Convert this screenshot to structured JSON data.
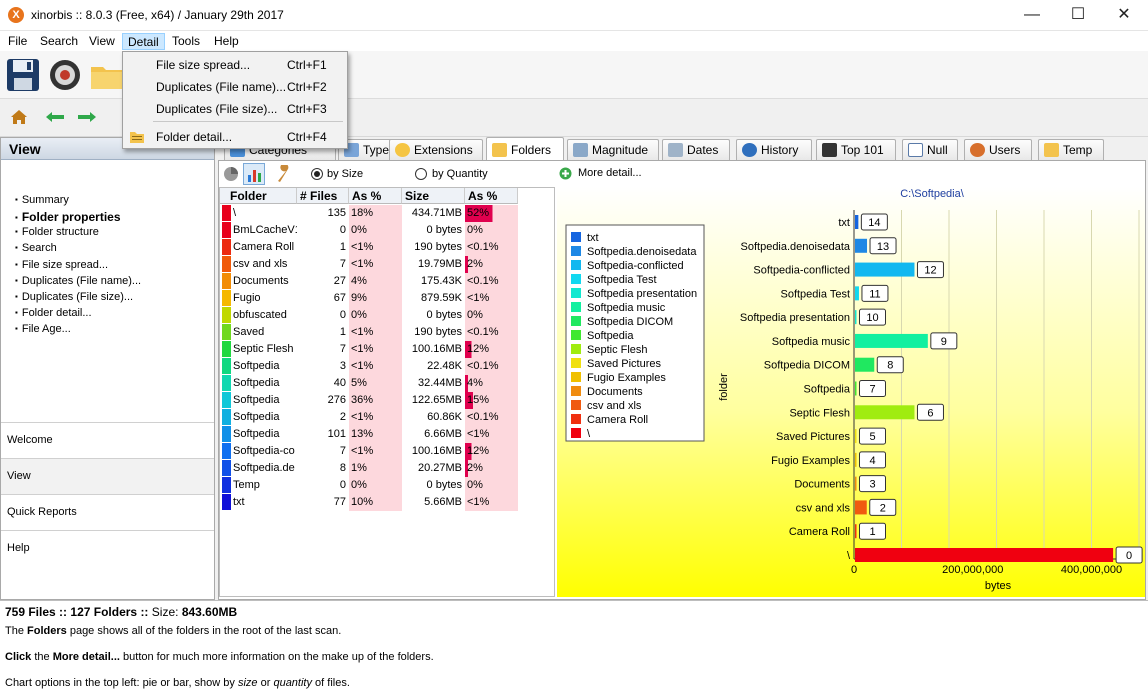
{
  "window": {
    "title": "xinorbis :: 8.0.3 (Free, x64) / January 29th 2017",
    "app_icon_glyph": "X",
    "minimize": "—",
    "maximize": "☐",
    "close": "✕"
  },
  "menu": [
    "File",
    "Search",
    "View",
    "Detail",
    "Tools",
    "Help"
  ],
  "detail_menu": [
    {
      "label": "File size spread...",
      "shortcut": "Ctrl+F1"
    },
    {
      "label": "Duplicates (File name)...",
      "shortcut": "Ctrl+F2"
    },
    {
      "label": "Duplicates (File size)...",
      "shortcut": "Ctrl+F3"
    },
    {
      "label": "Folder detail...",
      "shortcut": "Ctrl+F4"
    }
  ],
  "left_panel": {
    "header": "View",
    "links": [
      "Summary",
      "Folder properties",
      "Folder structure",
      "Search",
      "File size spread...",
      "Duplicates (File name)...",
      "Duplicates (File size)...",
      "Folder detail...",
      "File Age..."
    ],
    "active_link": "Folder properties",
    "bottom": [
      "Welcome",
      "View",
      "Quick Reports",
      "Help"
    ]
  },
  "tabs": [
    {
      "label": "Categories",
      "icon": "categories-icon",
      "color": "#4a8fd8"
    },
    {
      "label": "Type",
      "icon": "type-icon",
      "color": "#7aa5d8"
    },
    {
      "label": "Extensions",
      "icon": "extensions-icon",
      "color": "#f5c542"
    },
    {
      "label": "Folders",
      "icon": "folder-icon",
      "color": "#f3c34d"
    },
    {
      "label": "Magnitude",
      "icon": "magnitude-icon",
      "color": "#8aa8c8"
    },
    {
      "label": "Dates",
      "icon": "calendar-icon",
      "color": "#9fb3c8"
    },
    {
      "label": "History",
      "icon": "clock-icon",
      "color": "#2f6fbd"
    },
    {
      "label": "Top 101",
      "icon": "top101-icon",
      "color": "#333333"
    },
    {
      "label": "Null",
      "icon": "file-icon",
      "color": "#ffffff"
    },
    {
      "label": "Users",
      "icon": "user-icon",
      "color": "#d76f2c"
    },
    {
      "label": "Temp",
      "icon": "folder-icon",
      "color": "#f3c34d"
    }
  ],
  "controls": {
    "by_size": "by Size",
    "by_quantity": "by Quantity",
    "more_detail": "More detail..."
  },
  "table": {
    "headers": [
      "Folder",
      "# Files",
      "As %",
      "Size",
      "As %"
    ],
    "rows": [
      {
        "folder": "\\",
        "files": "135",
        "pct1": "18%",
        "size": "434.71MB",
        "pct2": "52%",
        "color": "#e8001c",
        "bar": 0.52
      },
      {
        "folder": "BmLCacheV1",
        "files": "0",
        "pct1": "0%",
        "size": "0 bytes",
        "pct2": "0%",
        "color": "#e8001c",
        "bar": 0
      },
      {
        "folder": "Camera Roll",
        "files": "1",
        "pct1": "<1%",
        "size": "190 bytes",
        "pct2": "<0.1%",
        "color": "#ec2a10",
        "bar": 0
      },
      {
        "folder": "csv and xls",
        "files": "7",
        "pct1": "<1%",
        "size": "19.79MB",
        "pct2": "2%",
        "color": "#f05a0a",
        "bar": 0.02
      },
      {
        "folder": "Documents",
        "files": "27",
        "pct1": "4%",
        "size": "175.43K",
        "pct2": "<0.1%",
        "color": "#f28c06",
        "bar": 0
      },
      {
        "folder": "Fugio",
        "files": "67",
        "pct1": "9%",
        "size": "879.59K",
        "pct2": "<1%",
        "color": "#f5b800",
        "bar": 0
      },
      {
        "folder": "obfuscated",
        "files": "0",
        "pct1": "0%",
        "size": "0 bytes",
        "pct2": "0%",
        "color": "#c0d800",
        "bar": 0
      },
      {
        "folder": "Saved",
        "files": "1",
        "pct1": "<1%",
        "size": "190 bytes",
        "pct2": "<0.1%",
        "color": "#70d820",
        "bar": 0
      },
      {
        "folder": "Septic Flesh",
        "files": "7",
        "pct1": "<1%",
        "size": "100.16MB",
        "pct2": "12%",
        "color": "#20d840",
        "bar": 0.12
      },
      {
        "folder": "Softpedia",
        "files": "3",
        "pct1": "<1%",
        "size": "22.48K",
        "pct2": "<0.1%",
        "color": "#10d880",
        "bar": 0
      },
      {
        "folder": "Softpedia",
        "files": "40",
        "pct1": "5%",
        "size": "32.44MB",
        "pct2": "4%",
        "color": "#10d8b0",
        "bar": 0.04
      },
      {
        "folder": "Softpedia",
        "files": "276",
        "pct1": "36%",
        "size": "122.65MB",
        "pct2": "15%",
        "color": "#10c8d8",
        "bar": 0.15
      },
      {
        "folder": "Softpedia",
        "files": "2",
        "pct1": "<1%",
        "size": "60.86K",
        "pct2": "<0.1%",
        "color": "#10b0e0",
        "bar": 0
      },
      {
        "folder": "Softpedia",
        "files": "101",
        "pct1": "13%",
        "size": "6.66MB",
        "pct2": "<1%",
        "color": "#1090e8",
        "bar": 0
      },
      {
        "folder": "Softpedia-co",
        "files": "7",
        "pct1": "<1%",
        "size": "100.16MB",
        "pct2": "12%",
        "color": "#1070f0",
        "bar": 0.12
      },
      {
        "folder": "Softpedia.de",
        "files": "8",
        "pct1": "1%",
        "size": "20.27MB",
        "pct2": "2%",
        "color": "#1050e8",
        "bar": 0.02
      },
      {
        "folder": "Temp",
        "files": "0",
        "pct1": "0%",
        "size": "0 bytes",
        "pct2": "0%",
        "color": "#1030e0",
        "bar": 0
      },
      {
        "folder": "txt",
        "files": "77",
        "pct1": "10%",
        "size": "5.66MB",
        "pct2": "<1%",
        "color": "#1010d8",
        "bar": 0
      }
    ]
  },
  "chart_data": {
    "type": "bar",
    "orientation": "horizontal",
    "title": "C:\\Softpedia\\",
    "xlabel": "bytes",
    "ylabel": "folder",
    "xticks": [
      "0",
      "200,000,000",
      "400,000,000"
    ],
    "xlim": [
      0,
      480000000
    ],
    "categories": [
      "txt",
      "Softpedia.denoisedata",
      "Softpedia-conflicted",
      "Softpedia Test",
      "Softpedia presentation",
      "Softpedia music",
      "Softpedia DICOM",
      "Softpedia",
      "Septic Flesh",
      "Saved Pictures",
      "Fugio Examples",
      "Documents",
      "csv and xls",
      "Camera Roll",
      "\\"
    ],
    "values": [
      5660000,
      20270000,
      100160000,
      6660000,
      60860,
      122650000,
      32440000,
      22480,
      100160000,
      190,
      879590,
      175430,
      19790000,
      190,
      434710000
    ],
    "point_labels": [
      "14",
      "13",
      "12",
      "11",
      "10",
      "9",
      "8",
      "7",
      "6",
      "5",
      "4",
      "3",
      "2",
      "1",
      "0"
    ],
    "colors": [
      "#1565e0",
      "#1e88e5",
      "#12b8f0",
      "#12d8f0",
      "#12e8d0",
      "#12f0a0",
      "#20e860",
      "#40e830",
      "#a0ec10",
      "#f0e010",
      "#f0c000",
      "#f08c10",
      "#f05a10",
      "#f03010",
      "#f00010"
    ],
    "legend_position": "top-left",
    "legend": [
      "txt",
      "Softpedia.denoisedata",
      "Softpedia-conflicted",
      "Softpedia Test",
      "Softpedia presentation",
      "Softpedia music",
      "Softpedia DICOM",
      "Softpedia",
      "Septic Flesh",
      "Saved Pictures",
      "Fugio Examples",
      "Documents",
      "csv and xls",
      "Camera Roll",
      "\\"
    ],
    "grid": true
  },
  "status": {
    "summary_files": "759 Files",
    "summary_folders": "127 Folders",
    "summary_size": "843.60MB",
    "sep": "::",
    "size_label": "Size:",
    "line1_a": "The",
    "line1_b": "Folders",
    "line1_c": "page shows all of the folders in the root of the last scan.",
    "line2_a": "Click",
    "line2_b": "the",
    "line2_c": "More detail...",
    "line2_d": "button for much more information on the make up of the folders.",
    "line3_a": "Chart options in the top left: pie or bar, show by",
    "line3_b": "size",
    "line3_c": "or",
    "line3_d": "quantity",
    "line3_e": "of files."
  }
}
